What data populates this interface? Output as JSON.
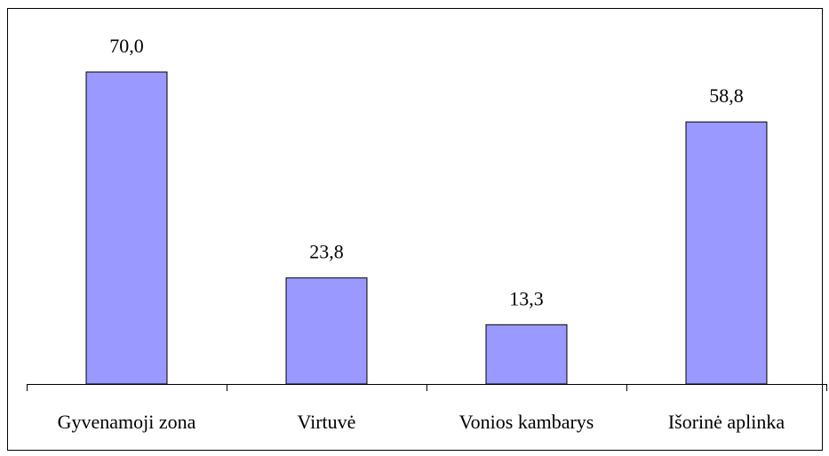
{
  "chart_data": {
    "type": "bar",
    "categories": [
      "Gyvenamoji zona",
      "Virtuvė",
      "Vonios kambarys",
      "Išorinė aplinka"
    ],
    "values": [
      70.0,
      23.8,
      13.3,
      58.8
    ],
    "value_labels": [
      "70,0",
      "23,8",
      "13,3",
      "58,8"
    ],
    "color": "#9999ff"
  }
}
